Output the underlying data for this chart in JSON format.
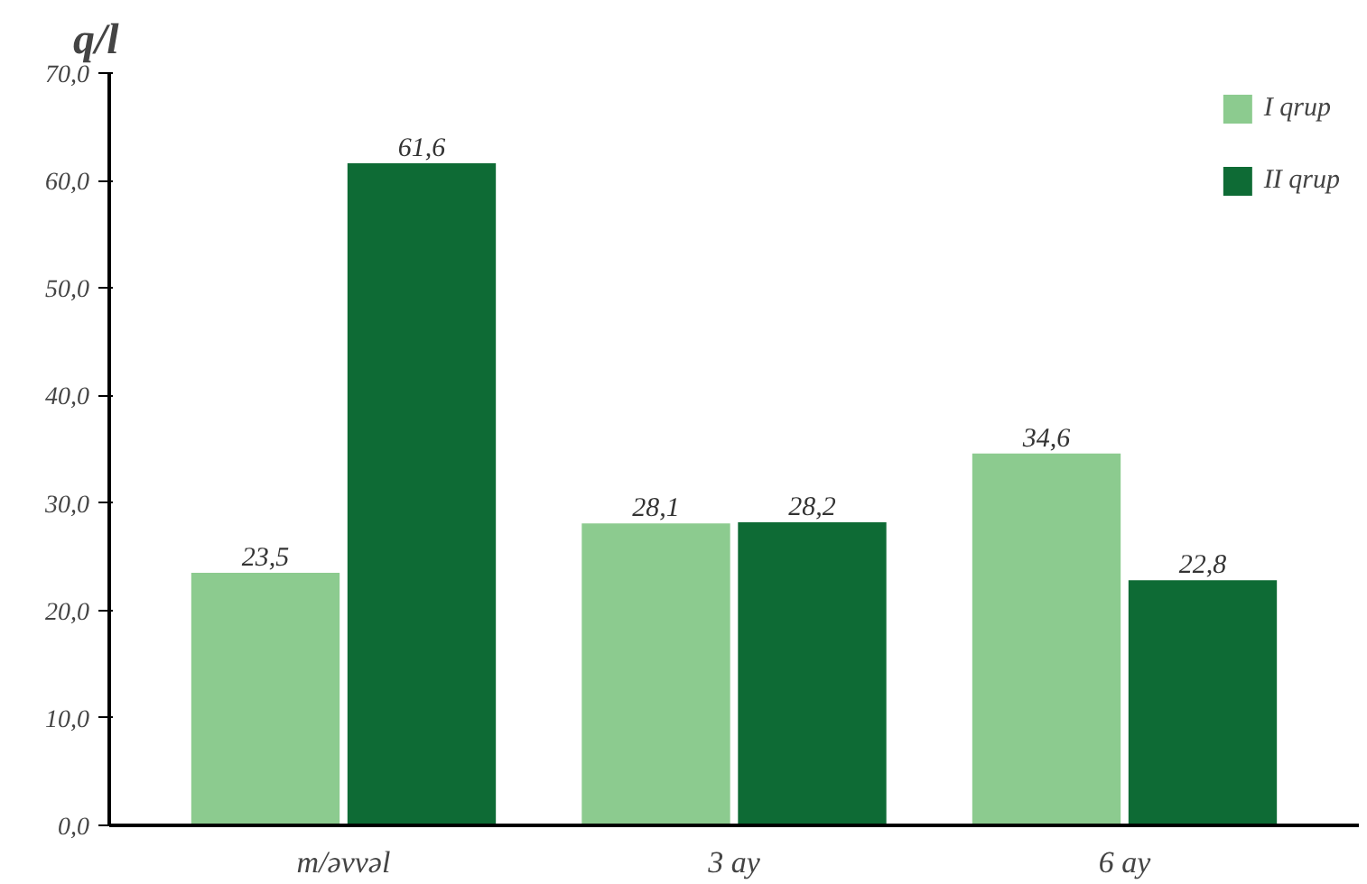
{
  "chart_data": {
    "type": "bar",
    "ylabel": "q/l",
    "categories": [
      "m/əvvəl",
      "3 ay",
      "6 ay"
    ],
    "series": [
      {
        "name": "I qrup",
        "color": "#8ccb8f",
        "values": [
          23.5,
          28.1,
          34.6
        ],
        "value_labels": [
          "23,5",
          "28,1",
          "34,6"
        ]
      },
      {
        "name": "II qrup",
        "color": "#0e6b35",
        "values": [
          61.6,
          28.2,
          22.8
        ],
        "value_labels": [
          "61,6",
          "28,2",
          "22,8"
        ]
      }
    ],
    "ylim": [
      0,
      70
    ],
    "yticks": [
      {
        "value": 0,
        "label": "0,0"
      },
      {
        "value": 10,
        "label": "10,0"
      },
      {
        "value": 20,
        "label": "20,0"
      },
      {
        "value": 30,
        "label": "30,0"
      },
      {
        "value": 40,
        "label": "40,0"
      },
      {
        "value": 50,
        "label": "50,0"
      },
      {
        "value": 60,
        "label": "60,0"
      },
      {
        "value": 70,
        "label": "70,0"
      }
    ],
    "grid": false,
    "legend": "top right"
  }
}
